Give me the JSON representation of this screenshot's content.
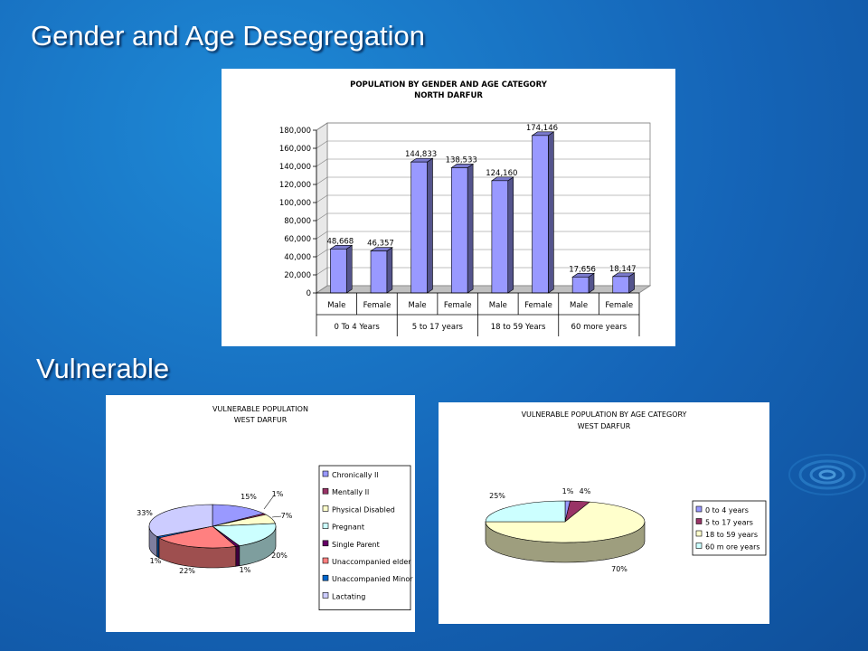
{
  "slide": {
    "title": "Gender and Age Desegregation",
    "section": "Vulnerable"
  },
  "chart_data": [
    {
      "type": "bar",
      "title": "POPULATION BY GENDER AND AGE CATEGORY",
      "subtitle": "NORTH DARFUR",
      "categories": [
        "Male",
        "Female",
        "Male",
        "Female",
        "Male",
        "Female",
        "Male",
        "Female"
      ],
      "groups": [
        "0 To 4 Years",
        "5 to 17 years",
        "18 to 59 Years",
        "60 more years"
      ],
      "values": [
        48668,
        46357,
        144833,
        138533,
        124160,
        174146,
        17656,
        18147
      ],
      "value_labels": [
        "48,668",
        "46,357",
        "144,833",
        "138,533",
        "124,160",
        "174,146",
        "17,656",
        "18,147"
      ],
      "yticks": [
        "0",
        "20,000",
        "40,000",
        "60,000",
        "80,000",
        "100,000",
        "120,000",
        "140,000",
        "160,000",
        "180,000"
      ],
      "ylim": [
        0,
        180000
      ],
      "color": "#9999ff",
      "grid": true
    },
    {
      "type": "pie",
      "title": "VULNERABLE POPULATION",
      "subtitle": "WEST DARFUR",
      "labels": [
        "Chronically Ill",
        "Mentally Ill",
        "Physical Disabled",
        "Pregnant",
        "Single Parent",
        "Unaccompanied elder",
        "Unaccompanied Minor",
        "Lactating"
      ],
      "legend_labels": [
        "Chronically Il",
        "Mentally Il",
        "Physical Disabled",
        "Pregnant",
        "Single Parent",
        "Unaccompanied elder",
        "Unaccompanied Minor",
        "Lactating"
      ],
      "values": [
        15,
        1,
        7,
        20,
        1,
        22,
        1,
        33
      ],
      "slice_order": [
        0,
        1,
        2,
        3,
        4,
        5,
        6,
        7
      ],
      "pct_labels": [
        "15%",
        "1%",
        "7%",
        "20%",
        "1%",
        "22%",
        "1%",
        "33%"
      ],
      "colors": [
        "#9999ff",
        "#993366",
        "#ffffcc",
        "#ccffff",
        "#660066",
        "#ff8080",
        "#0066cc",
        "#ccccff"
      ],
      "legend_position": "right"
    },
    {
      "type": "pie",
      "title": "VULNERABLE POPULATION BY AGE CATEGORY",
      "subtitle": "WEST DARFUR",
      "labels": [
        "0 to 4 years",
        "5 to 17 years",
        "18 to 59 years",
        "60 more years"
      ],
      "legend_labels": [
        "0 to 4 years",
        "5 to 17 years",
        "18 to 59 years",
        "60 m ore years"
      ],
      "values": [
        1,
        4,
        70,
        25
      ],
      "pct_labels": [
        "1%",
        "4%",
        "70%",
        "25%"
      ],
      "colors": [
        "#9999ff",
        "#993366",
        "#ffffcc",
        "#ccffff"
      ],
      "legend_position": "right"
    }
  ]
}
